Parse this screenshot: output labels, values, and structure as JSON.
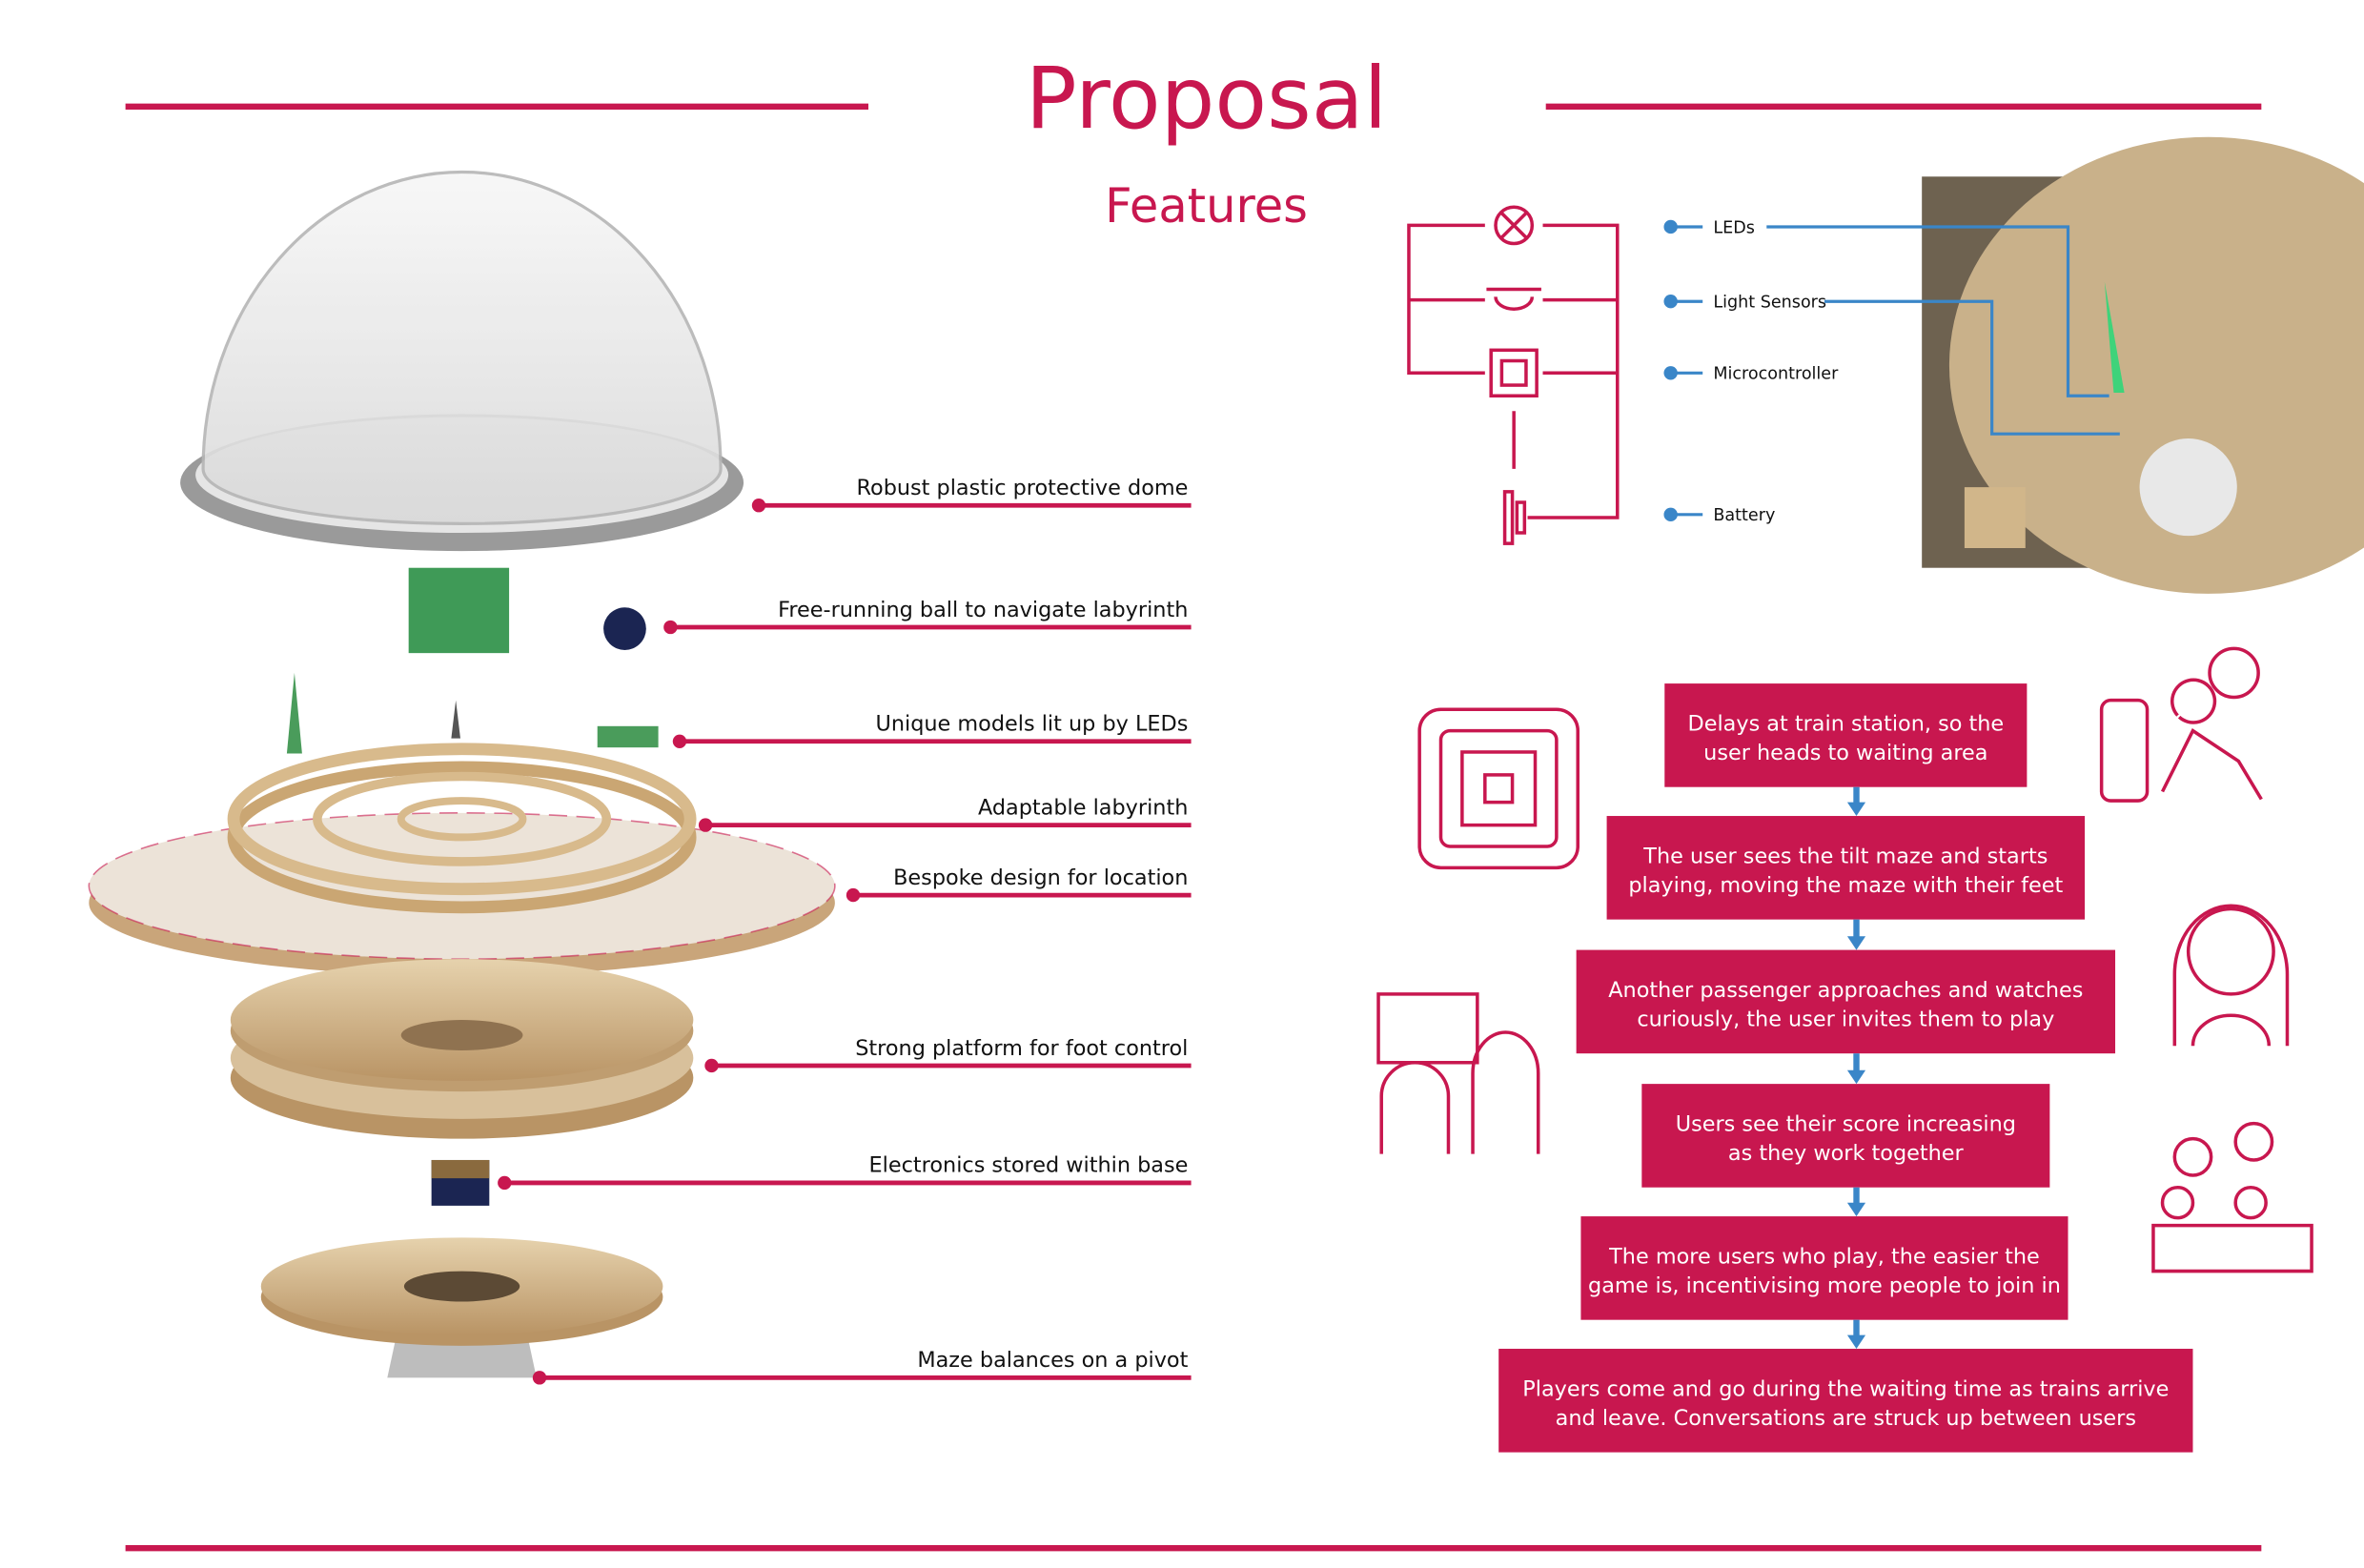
{
  "header": {
    "title": "Proposal",
    "subtitle": "Features"
  },
  "callouts": [
    "Robust plastic protective dome",
    "Free-running ball to navigate labyrinth",
    "Unique models lit up by LEDs",
    "Adaptable labyrinth",
    "Bespoke design for location",
    "Strong platform for foot control",
    "Electronics stored within base",
    "Maze balances on a pivot"
  ],
  "circuit": {
    "labels": [
      "LEDs",
      "Light Sensors",
      "Microcontroller",
      "Battery"
    ]
  },
  "flow": {
    "steps": [
      [
        "Delays at train station, so the",
        "user heads to waiting area"
      ],
      [
        "The user sees the tilt maze and starts",
        "playing, moving the maze with their feet"
      ],
      [
        "Another passenger approaches and watches",
        "curiously, the user invites them to play"
      ],
      [
        "Users see their score increasing",
        "as they work together"
      ],
      [
        "The more users who play, the easier the",
        "game is, incentivising more people to join in"
      ],
      [
        "Players come and go during the waiting time as trains arrive",
        "and leave. Conversations are struck up between users"
      ]
    ]
  }
}
